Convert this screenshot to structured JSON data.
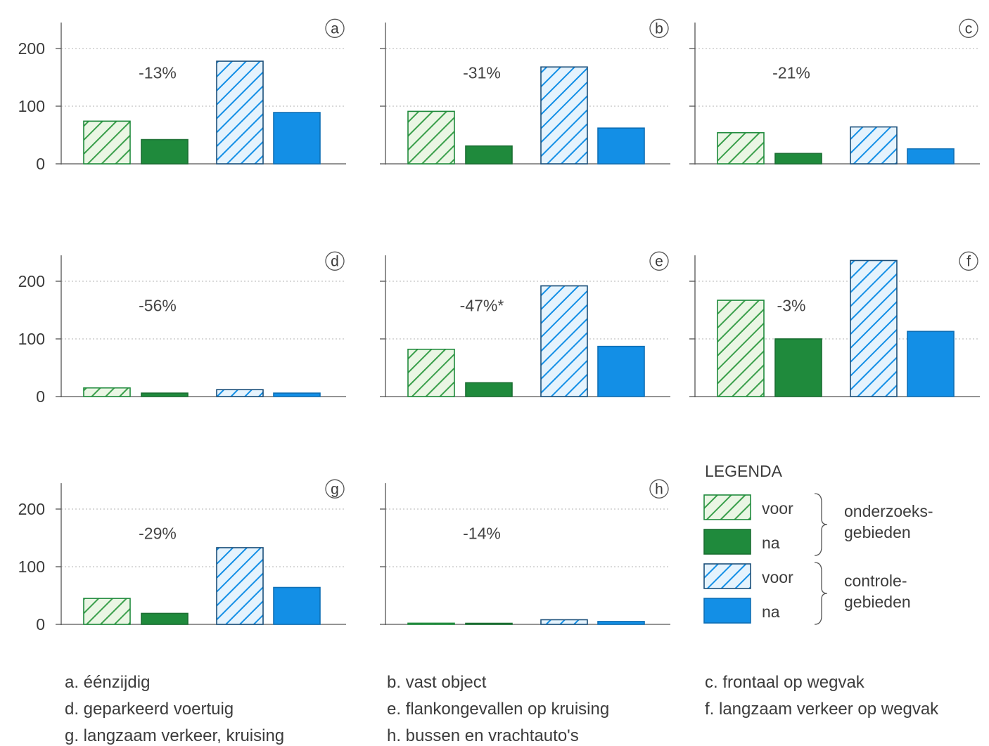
{
  "chart_data": {
    "type": "bar",
    "groups": [
      "onderzoeks-gebieden",
      "controle-gebieden"
    ],
    "bar_order": [
      "voor",
      "na",
      "voor",
      "na"
    ],
    "yticks": [
      0,
      100,
      200
    ],
    "ylim": [
      0,
      250
    ],
    "grid": true,
    "panels": [
      {
        "id": "a",
        "letter": "a",
        "change": "-13%",
        "values": [
          74,
          42,
          178,
          89
        ],
        "caption": "a. éénzijdig"
      },
      {
        "id": "b",
        "letter": "b",
        "change": "-31%",
        "values": [
          91,
          31,
          168,
          62
        ],
        "caption": "b. vast object"
      },
      {
        "id": "c",
        "letter": "c",
        "change": "-21%",
        "values": [
          54,
          18,
          64,
          26
        ],
        "caption": "c. frontaal op wegvak"
      },
      {
        "id": "d",
        "letter": "d",
        "change": "-56%",
        "values": [
          15,
          6,
          12,
          6
        ],
        "caption": "d. geparkeerd voertuig"
      },
      {
        "id": "e",
        "letter": "e",
        "change": "-47%*",
        "values": [
          82,
          24,
          192,
          87
        ],
        "caption": "e. flankongevallen op kruising"
      },
      {
        "id": "f",
        "letter": "f",
        "change": "-3%",
        "values": [
          167,
          100,
          236,
          113
        ],
        "caption": "f. langzaam verkeer op wegvak"
      },
      {
        "id": "g",
        "letter": "g",
        "change": "-29%",
        "values": [
          45,
          19,
          133,
          64
        ],
        "caption": "g. langzaam verkeer, kruising"
      },
      {
        "id": "h",
        "letter": "h",
        "change": "-14%",
        "values": [
          2,
          1,
          8,
          5
        ],
        "caption": "h. bussen en vrachtauto's"
      }
    ],
    "legend": {
      "title": "LEGENDA",
      "entries": [
        {
          "label": "voor",
          "series": "onderzoeks-voor"
        },
        {
          "label": "na",
          "series": "onderzoeks-na"
        },
        {
          "label": "voor",
          "series": "controle-voor"
        },
        {
          "label": "na",
          "series": "controle-na"
        }
      ],
      "groups": [
        {
          "lines": [
            "onderzoeks-",
            "gebieden"
          ]
        },
        {
          "lines": [
            "controle-",
            "gebieden"
          ]
        }
      ]
    }
  },
  "colors": {
    "green_dark": "#1f8a3c",
    "green_hatch": "#3a9f4b",
    "green_fill": "#eaf6e4",
    "blue_dark": "#138fe6",
    "blue_hatch": "#138fe6",
    "blue_fill": "#e5f3fd",
    "axis": "#555555",
    "grid": "#b5b5b5"
  }
}
